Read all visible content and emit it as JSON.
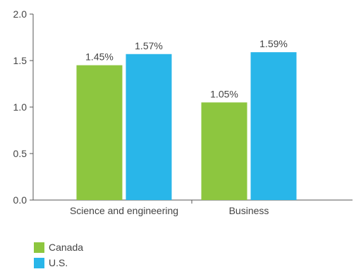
{
  "chart_data": {
    "type": "bar",
    "categories": [
      "Science and engineering",
      "Business"
    ],
    "series": [
      {
        "name": "Canada",
        "values": [
          1.45,
          1.05
        ],
        "labels": [
          "1.45%",
          "1.05%"
        ],
        "color": "#8dc63f"
      },
      {
        "name": "U.S.",
        "values": [
          1.57,
          1.59
        ],
        "labels": [
          "1.57%",
          "1.59%"
        ],
        "color": "#29b6e9"
      }
    ],
    "ylim": [
      0,
      2.0
    ],
    "yticks": [
      "0.0",
      "0.5",
      "1.0",
      "1.5",
      "2.0"
    ],
    "grid": false,
    "legend_position": "bottom-left",
    "title": "",
    "xlabel": "",
    "ylabel": ""
  }
}
